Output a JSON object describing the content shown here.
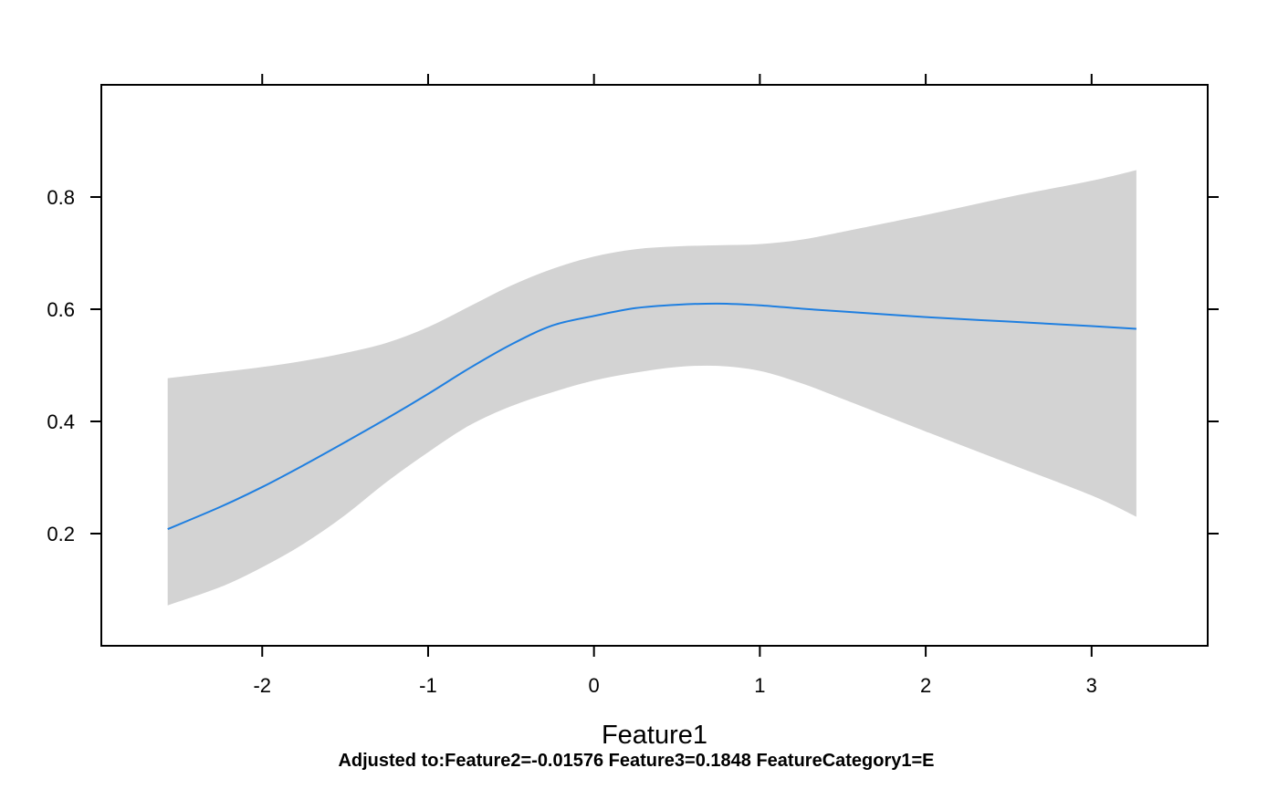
{
  "chart_data": {
    "type": "line",
    "title": "",
    "xlabel": "Feature1",
    "ylabel": "",
    "subtitle": "Adjusted to:Feature2=-0.01576 Feature3=0.1848 FeatureCategory1=E",
    "xlim": [
      -2.97,
      3.7
    ],
    "ylim": [
      0.0,
      1.0
    ],
    "x_ticks": [
      -2,
      -1,
      0,
      1,
      2,
      3
    ],
    "y_ticks": [
      0.2,
      0.4,
      0.6,
      0.8
    ],
    "x_tick_labels": [
      "-2",
      "-1",
      "0",
      "1",
      "2",
      "3"
    ],
    "y_tick_labels": [
      "0.2",
      "0.4",
      "0.6",
      "0.8"
    ],
    "grid": false,
    "series": [
      {
        "color": "#1f7fe0",
        "band_color": "#d3d3d3",
        "x": [
          -2.57,
          -2.25,
          -2.0,
          -1.75,
          -1.5,
          -1.25,
          -1.0,
          -0.75,
          -0.5,
          -0.25,
          0.0,
          0.25,
          0.5,
          0.75,
          1.0,
          1.25,
          1.5,
          2.0,
          2.5,
          3.0,
          3.27
        ],
        "y": [
          0.208,
          0.248,
          0.283,
          0.322,
          0.363,
          0.405,
          0.449,
          0.495,
          0.537,
          0.571,
          0.588,
          0.602,
          0.608,
          0.61,
          0.607,
          0.601,
          0.596,
          0.586,
          0.578,
          0.57,
          0.565
        ],
        "lower": [
          0.072,
          0.105,
          0.14,
          0.182,
          0.233,
          0.292,
          0.345,
          0.393,
          0.427,
          0.452,
          0.473,
          0.487,
          0.497,
          0.499,
          0.49,
          0.468,
          0.44,
          0.382,
          0.325,
          0.268,
          0.23
        ],
        "upper": [
          0.477,
          0.488,
          0.497,
          0.508,
          0.522,
          0.54,
          0.568,
          0.605,
          0.642,
          0.672,
          0.694,
          0.707,
          0.712,
          0.714,
          0.716,
          0.724,
          0.738,
          0.768,
          0.8,
          0.829,
          0.848
        ]
      }
    ]
  }
}
